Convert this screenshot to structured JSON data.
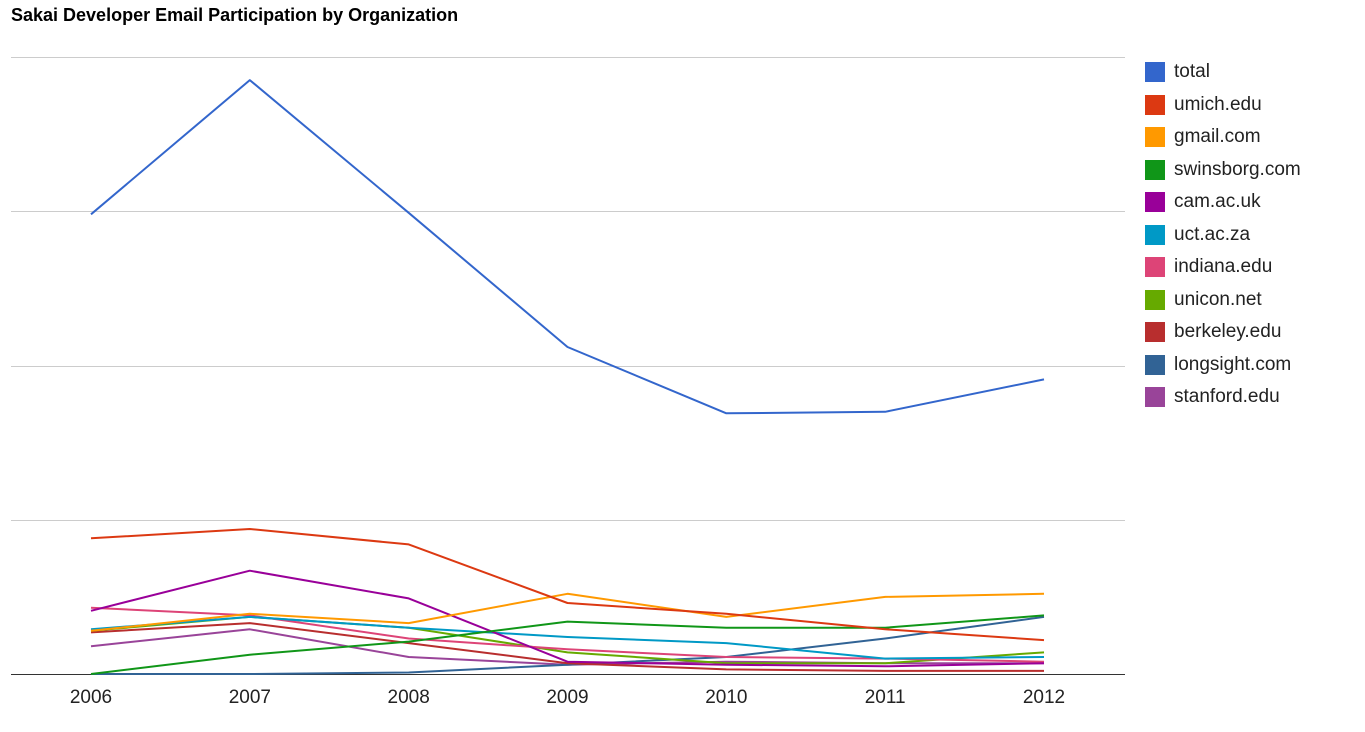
{
  "chart_data": {
    "type": "line",
    "title": "Sakai Developer Email Participation by Organization",
    "xlabel": "",
    "ylabel": "",
    "categories": [
      "2006",
      "2007",
      "2008",
      "2009",
      "2010",
      "2011",
      "2012"
    ],
    "ylim": [
      0,
      4000
    ],
    "gridlines": [
      0,
      1000,
      2000,
      3000,
      4000
    ],
    "grid": true,
    "y_tick_labels_shown": false,
    "legend_position": "right",
    "series": [
      {
        "name": "total",
        "color": "#3366cc",
        "values": [
          2980,
          3850,
          2990,
          2120,
          1690,
          1700,
          1910
        ]
      },
      {
        "name": "umich.edu",
        "color": "#dc3912",
        "values": [
          880,
          940,
          840,
          460,
          390,
          290,
          220
        ]
      },
      {
        "name": "gmail.com",
        "color": "#ff9900",
        "values": [
          280,
          390,
          330,
          520,
          370,
          500,
          520
        ]
      },
      {
        "name": "swinsborg.com",
        "color": "#109618",
        "values": [
          0,
          125,
          210,
          340,
          300,
          300,
          380
        ]
      },
      {
        "name": "cam.ac.uk",
        "color": "#990099",
        "values": [
          410,
          670,
          490,
          80,
          60,
          50,
          70
        ]
      },
      {
        "name": "uct.ac.za",
        "color": "#0099c6",
        "values": [
          290,
          370,
          300,
          240,
          200,
          100,
          110
        ]
      },
      {
        "name": "indiana.edu",
        "color": "#dd4477",
        "values": [
          430,
          380,
          230,
          160,
          110,
          100,
          80
        ]
      },
      {
        "name": "unicon.net",
        "color": "#66aa00",
        "values": [
          280,
          370,
          300,
          140,
          70,
          70,
          140
        ]
      },
      {
        "name": "berkeley.edu",
        "color": "#b82e2e",
        "values": [
          270,
          330,
          200,
          70,
          30,
          20,
          20
        ]
      },
      {
        "name": "longsight.com",
        "color": "#316395",
        "values": [
          0,
          0,
          10,
          60,
          110,
          230,
          370
        ]
      },
      {
        "name": "stanford.edu",
        "color": "#994499",
        "values": [
          180,
          290,
          110,
          60,
          80,
          70,
          70
        ]
      }
    ]
  }
}
